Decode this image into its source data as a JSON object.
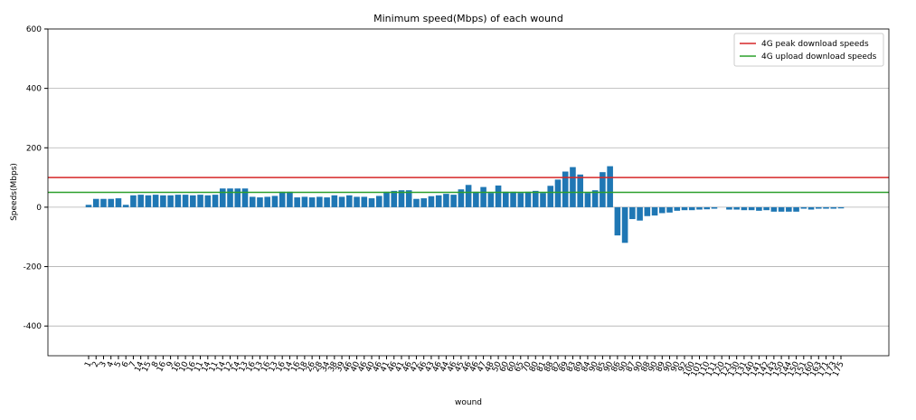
{
  "chart_data": {
    "type": "bar",
    "title": "Minimum speed(Mbps) of each wound",
    "x_label": "wound",
    "y_label": "Speeds(Mbps)",
    "color": "#1f77b4",
    "grid": true,
    "legend": "upper right",
    "ylim": [
      -500,
      600
    ],
    "yticks": [
      -400,
      -200,
      0,
      200,
      400,
      600
    ],
    "hlines": [
      {
        "name": "4G peak download speeds",
        "color": "#d62728",
        "value": 100
      },
      {
        "name": "4G upload download speeds",
        "color": "#2ca02c",
        "value": 50
      }
    ],
    "categories": [
      "1",
      "2",
      "3",
      "4",
      "5",
      "6",
      "7",
      "14",
      "15",
      "8",
      "16",
      "9",
      "16",
      "10",
      "16",
      "11",
      "14",
      "11",
      "14",
      "12",
      "14",
      "13",
      "16",
      "13",
      "16",
      "13",
      "16",
      "14",
      "16",
      "18",
      "26",
      "28",
      "34",
      "38",
      "39",
      "46",
      "40",
      "46",
      "40",
      "46",
      "41",
      "46",
      "41",
      "46",
      "42",
      "46",
      "43",
      "46",
      "44",
      "46",
      "45",
      "46",
      "46",
      "47",
      "48",
      "50",
      "60",
      "60",
      "65",
      "70",
      "80",
      "81",
      "88",
      "82",
      "89",
      "83",
      "89",
      "84",
      "90",
      "85",
      "90",
      "86",
      "90",
      "87",
      "90",
      "88",
      "90",
      "89",
      "90",
      "90",
      "92",
      "100",
      "101",
      "110",
      "111",
      "120",
      "121",
      "130",
      "131",
      "140",
      "141",
      "142",
      "143",
      "150",
      "144",
      "150",
      "151",
      "160",
      "163",
      "171",
      "173",
      "175"
    ],
    "values": [
      8,
      28,
      28,
      28,
      30,
      8,
      40,
      42,
      40,
      42,
      40,
      40,
      42,
      42,
      40,
      42,
      40,
      42,
      63,
      63,
      63,
      63,
      35,
      33,
      35,
      38,
      52,
      52,
      33,
      35,
      33,
      35,
      33,
      40,
      35,
      40,
      35,
      35,
      30,
      38,
      52,
      55,
      57,
      57,
      28,
      30,
      37,
      40,
      45,
      42,
      60,
      75,
      52,
      68,
      48,
      73,
      52,
      52,
      48,
      52,
      55,
      48,
      72,
      93,
      120,
      135,
      110,
      48,
      57,
      118,
      138,
      -95,
      -120,
      -40,
      -45,
      -30,
      -28,
      -20,
      -18,
      -12,
      -10,
      -10,
      -8,
      -7,
      -5,
      0,
      -8,
      -8,
      -10,
      -10,
      -12,
      -10,
      -15,
      -15,
      -15,
      -15,
      -5,
      -8,
      -5,
      -5,
      -5,
      -4
    ]
  }
}
